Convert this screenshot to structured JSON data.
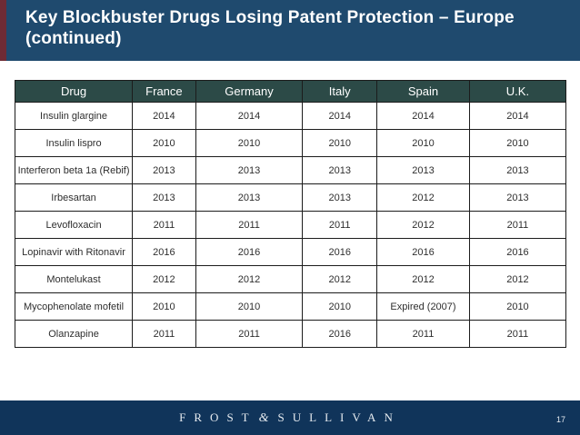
{
  "slide": {
    "title_lines": [
      "Key Blockbuster Drugs Losing Patent Protection – Europe",
      "(continued)"
    ]
  },
  "table": {
    "columns": [
      "Drug",
      "France",
      "Germany",
      "Italy",
      "Spain",
      "U.K."
    ],
    "rows": [
      [
        "Insulin glargine",
        "2014",
        "2014",
        "2014",
        "2014",
        "2014"
      ],
      [
        "Insulin lispro",
        "2010",
        "2010",
        "2010",
        "2010",
        "2010"
      ],
      [
        "Interferon beta 1a (Rebif)",
        "2013",
        "2013",
        "2013",
        "2013",
        "2013"
      ],
      [
        "Irbesartan",
        "2013",
        "2013",
        "2013",
        "2012",
        "2013"
      ],
      [
        "Levofloxacin",
        "2011",
        "2011",
        "2011",
        "2012",
        "2011"
      ],
      [
        "Lopinavir with Ritonavir",
        "2016",
        "2016",
        "2016",
        "2016",
        "2016"
      ],
      [
        "Montelukast",
        "2012",
        "2012",
        "2012",
        "2012",
        "2012"
      ],
      [
        "Mycophenolate mofetil",
        "2010",
        "2010",
        "2010",
        "Expired (2007)",
        "2010"
      ],
      [
        "Olanzapine",
        "2011",
        "2011",
        "2016",
        "2011",
        "2011"
      ]
    ]
  },
  "footer": {
    "brand_word1": "FROST",
    "brand_amp": "&",
    "brand_word2": "SULLIVAN",
    "page_number": "17"
  },
  "colors": {
    "title_bar": "#1F4A6E",
    "accent_stripe": "#6E2B35",
    "table_header_bg": "#2C4A47",
    "footer_bar": "#10345A"
  }
}
